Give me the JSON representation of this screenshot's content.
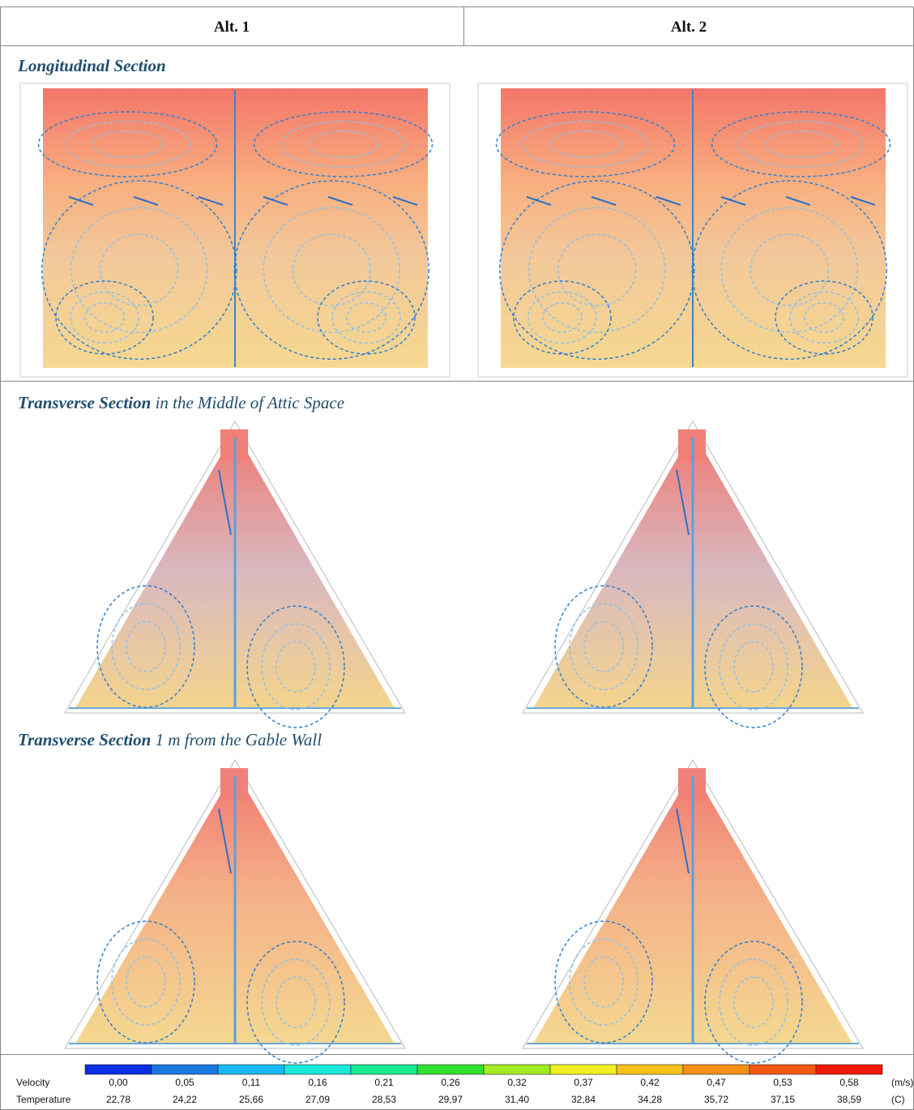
{
  "header": [
    "Alt. 1",
    "Alt. 2"
  ],
  "sections": [
    {
      "title": "Longitudinal Section"
    },
    {
      "title": "Transverse Section",
      "subtitle": "in the Middle of Attic Space"
    },
    {
      "title": "Transverse Section",
      "subtitle": "1 m from the Gable Wall"
    }
  ],
  "legend": {
    "rows": [
      {
        "label": "Velocity",
        "unit": "(m/s)",
        "values": [
          "0,00",
          "0,05",
          "0,11",
          "0,16",
          "0,21",
          "0,26",
          "0,32",
          "0,37",
          "0,42",
          "0,47",
          "0,53",
          "0,58"
        ]
      },
      {
        "label": "Temperature",
        "unit": "(C)",
        "values": [
          "22,78",
          "24,22",
          "25,66",
          "27,09",
          "28,53",
          "29,97",
          "31,40",
          "32,84",
          "34,28",
          "35,72",
          "37,15",
          "38,59"
        ]
      }
    ],
    "colors": [
      "#0a2ee0",
      "#1a78e0",
      "#1ab8f0",
      "#18e8d8",
      "#18e890",
      "#30e030",
      "#a0ec20",
      "#f0f020",
      "#f8c018",
      "#f89018",
      "#f85810",
      "#f01808"
    ]
  }
}
